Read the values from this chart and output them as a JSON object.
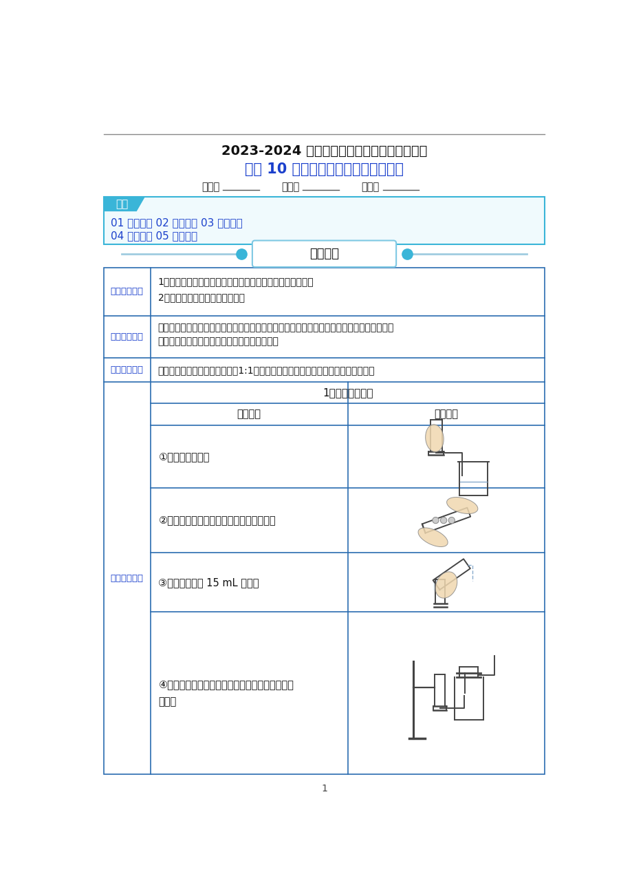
{
  "page_bg": "#ffffff",
  "title1": "2023-2024 学年九年级化学上册教材同步实验",
  "title2": "实验 10 二氧化碳的实验室制取与性质",
  "title1_color": "#111111",
  "title2_color": "#1a3fcc",
  "name_label1": "姓名：",
  "name_label2": "班级：",
  "name_label3": "学号：",
  "catalog_label": "目录",
  "catalog_line1": "01 实验梳理 02 实验点拨 03 典例分析",
  "catalog_line2": "04 对点训练 05 真题感悟",
  "catalog_border": "#3ab5d8",
  "catalog_label_bg": "#3ab5d8",
  "catalog_text_color": "#1a3fcc",
  "section_title": "实验梳理",
  "table_border": "#2a6cb0",
  "row1_label": "【实验目的】",
  "row1_content1": "1．练习实验室里制取二氧化碳和用向上排空气法收集气体。",
  "row1_content2": "2．加深对二氧化碳性质的认识。",
  "row2_label": "【实验仪器】",
  "row2_content1": "烧杯、集气瓶、量筒、玻璃导管、胶皮管、单孔橡皮塞、铁架台（带铁夹）、试管、试管夹、",
  "row2_content2": "玻璃片、酒精灯、镊子、木条、火柴、胶头滴管",
  "row3_label": "【实验试剂】",
  "row3_content": "大理石（或石灰石）、稀盐酸（1:1）、澄清石灰水、紫色石蕊溶液、蜡烛、蒸馏水",
  "row4_label": "【实验步骤】",
  "subtable_title": "1．制取二氧化碳",
  "subtable_col1": "操作步骤",
  "subtable_col2": "实验图示",
  "step1": "①连接装置，检查",
  "step2": "②在试管里放入几小块大理石（或石灰石）",
  "step3": "③向试管里注入 15 mL 稀盐酸",
  "step4_line1": "④用向上排空气法收集气体，并验满，用玻璃片盖",
  "step4_line2": "住备用",
  "label_color": "#1a3fcc",
  "text_color": "#111111",
  "page_number": "1",
  "line_color": "#888888",
  "light_blue_line": "#a0cce0",
  "dot_color": "#3ab5d8",
  "section_box_border": "#7ec8e3"
}
